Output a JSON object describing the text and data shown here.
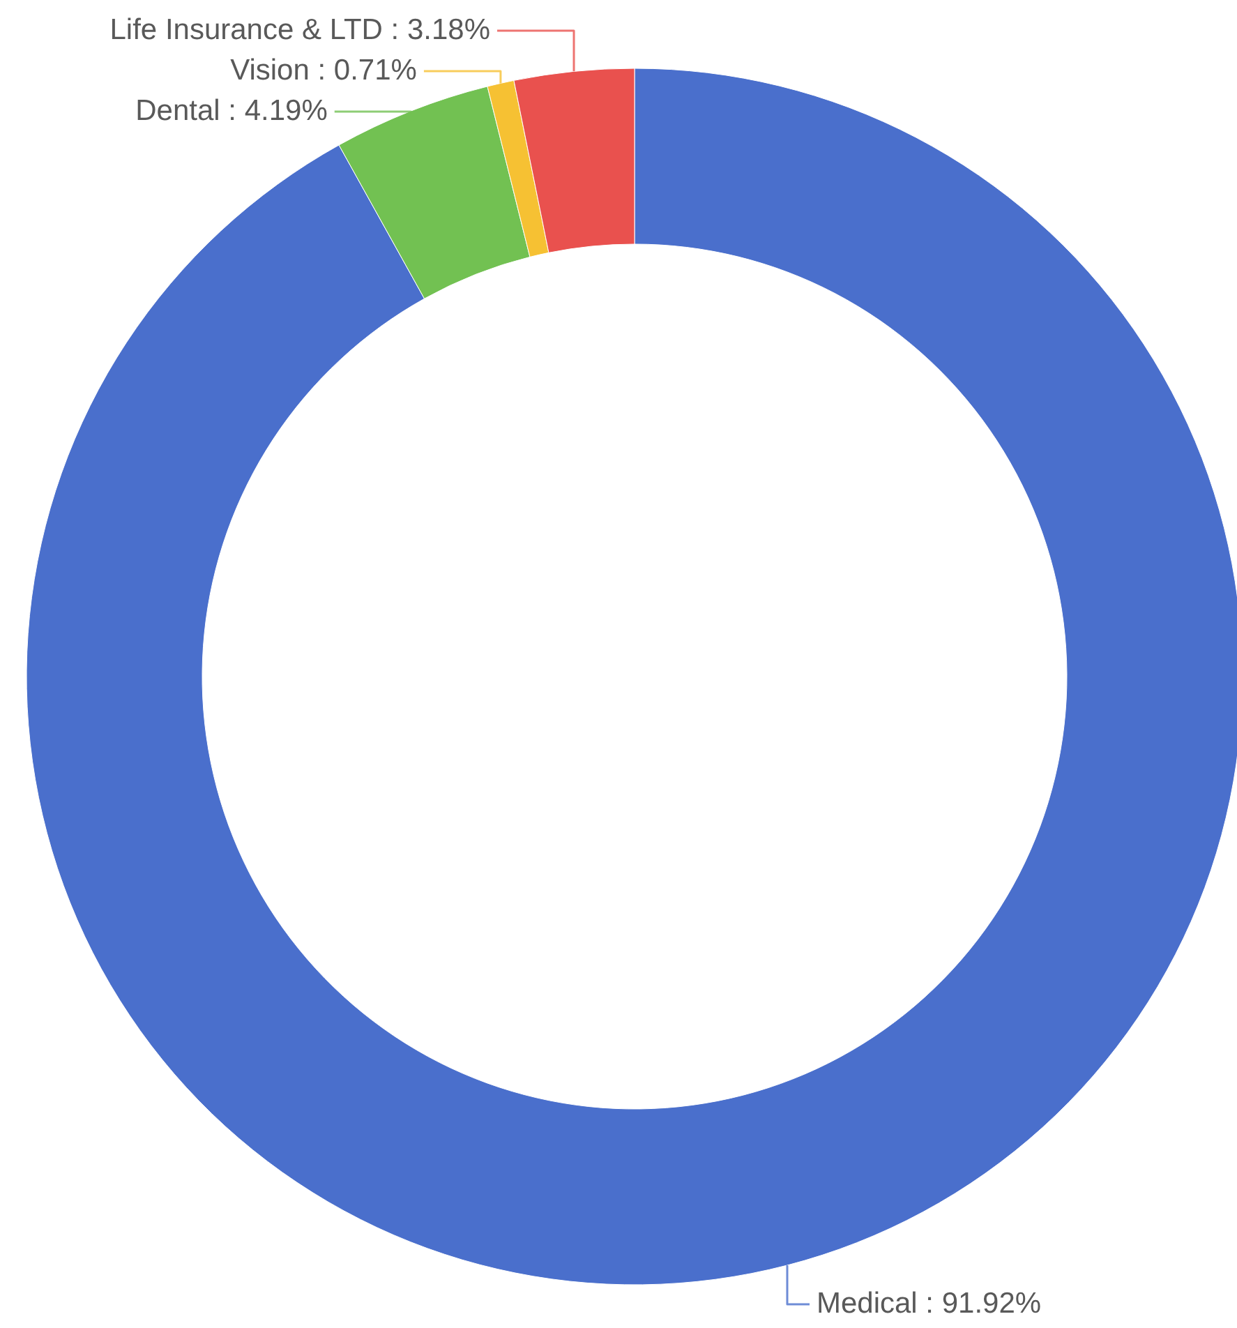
{
  "chart_data": {
    "type": "donut",
    "categories": [
      "Medical",
      "Dental",
      "Vision",
      "Life Insurance & LTD"
    ],
    "values": [
      91.92,
      4.19,
      0.71,
      3.18
    ],
    "colors": [
      "#4a6fcc",
      "#72c152",
      "#f6c133",
      "#e9514e"
    ],
    "value_labels": [
      "91.92%",
      "4.19%",
      "0.71%",
      "3.18%"
    ]
  }
}
